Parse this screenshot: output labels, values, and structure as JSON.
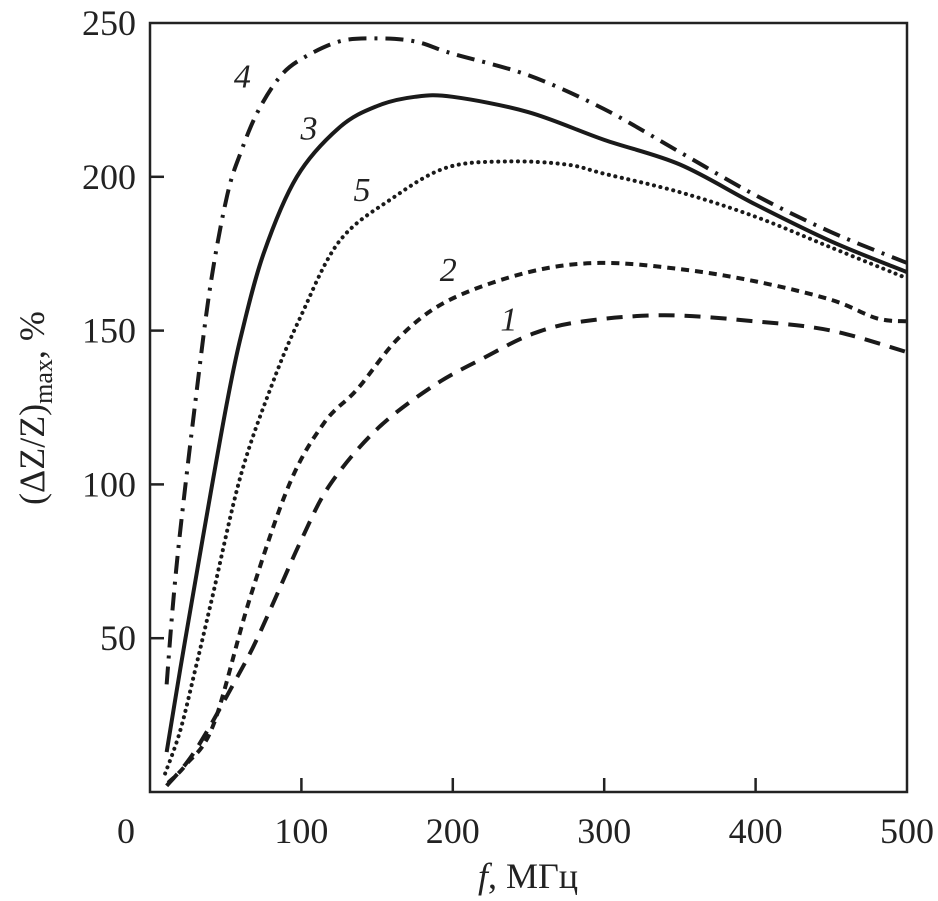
{
  "chart_data": {
    "type": "line",
    "title": "",
    "xlabel_italic": "f",
    "xlabel_rest": ", МГц",
    "ylabel_main": "(ΔZ/Z)",
    "ylabel_sub": "max",
    "ylabel_rest": ", %",
    "xlim": [
      0,
      500
    ],
    "ylim": [
      0,
      250
    ],
    "xticks": [
      0,
      100,
      200,
      300,
      400,
      500
    ],
    "yticks": [
      50,
      100,
      150,
      200,
      250
    ],
    "grid": false,
    "series": [
      {
        "name": "1",
        "style": "long-dash",
        "label_at": [
          237,
          154
        ],
        "x": [
          11,
          25,
          38,
          55,
          68,
          81,
          100,
          119,
          150,
          187,
          220,
          253,
          286,
          340,
          400,
          450,
          500
        ],
        "y": [
          2,
          10,
          20,
          35,
          47,
          61,
          82,
          100,
          118,
          132,
          141,
          149,
          153,
          155,
          153,
          150,
          143
        ]
      },
      {
        "name": "2",
        "style": "short-dash",
        "label_at": [
          197,
          170
        ],
        "x": [
          12,
          24,
          42,
          66,
          92,
          115,
          137,
          165,
          198,
          250,
          297,
          350,
          400,
          450,
          480,
          500
        ],
        "y": [
          3,
          9,
          22,
          63,
          100,
          120,
          131,
          148,
          160,
          169,
          172,
          170,
          166,
          160,
          154,
          153
        ]
      },
      {
        "name": "3",
        "style": "solid",
        "label_at": [
          105,
          216
        ],
        "x": [
          11,
          20,
          28,
          40,
          51,
          60,
          75,
          97,
          125,
          150,
          175,
          200,
          250,
          300,
          350,
          400,
          450,
          500
        ],
        "y": [
          13,
          40,
          63,
          97,
          127,
          148,
          175,
          200,
          216,
          223,
          226,
          226,
          221,
          212,
          204,
          191,
          179,
          169
        ]
      },
      {
        "name": "4",
        "style": "dash-dot",
        "label_at": [
          61,
          233
        ],
        "x": [
          11,
          15,
          20,
          30,
          40,
          51,
          60,
          71,
          85,
          99,
          125,
          150,
          175,
          200,
          250,
          300,
          350,
          400,
          450,
          500
        ],
        "y": [
          35,
          60,
          85,
          127,
          165,
          194,
          208,
          221,
          232,
          238,
          244,
          245,
          244,
          240,
          233,
          222,
          208,
          194,
          182,
          172
        ]
      },
      {
        "name": "5",
        "style": "dotted",
        "label_at": [
          140,
          196
        ],
        "x": [
          10,
          20,
          30,
          41,
          60,
          81,
          99,
          125,
          160,
          196,
          236,
          275,
          300,
          350,
          400,
          450,
          500
        ],
        "y": [
          6,
          20,
          40,
          63,
          103,
          133,
          154,
          179,
          193,
          203,
          205,
          204,
          201,
          195,
          187,
          177,
          167
        ]
      }
    ]
  }
}
